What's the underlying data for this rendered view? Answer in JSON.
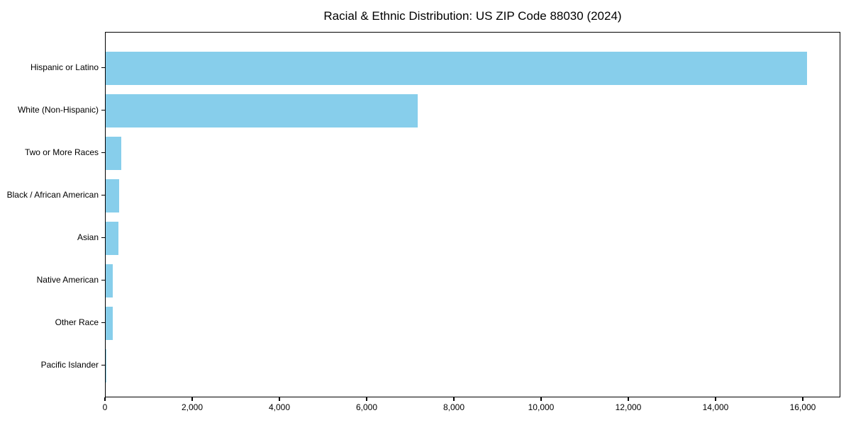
{
  "chart_data": {
    "type": "bar",
    "orientation": "horizontal",
    "title": "Racial & Ethnic Distribution: US ZIP Code 88030 (2024)",
    "categories": [
      "Hispanic or Latino",
      "White (Non-Hispanic)",
      "Two or More Races",
      "Black / African American",
      "Asian",
      "Native American",
      "Other Race",
      "Pacific Islander"
    ],
    "values": [
      16080,
      7150,
      360,
      310,
      300,
      160,
      155,
      15
    ],
    "xlabel": "",
    "ylabel": "",
    "xlim": [
      0,
      16862
    ],
    "x_ticks": [
      0,
      2000,
      4000,
      6000,
      8000,
      10000,
      12000,
      14000,
      16000
    ],
    "x_tick_labels": [
      "0",
      "2,000",
      "4,000",
      "6,000",
      "8,000",
      "10,000",
      "12,000",
      "14,000",
      "16,000"
    ],
    "bar_color": "#87CEEB",
    "grid": false,
    "legend_position": "none"
  }
}
